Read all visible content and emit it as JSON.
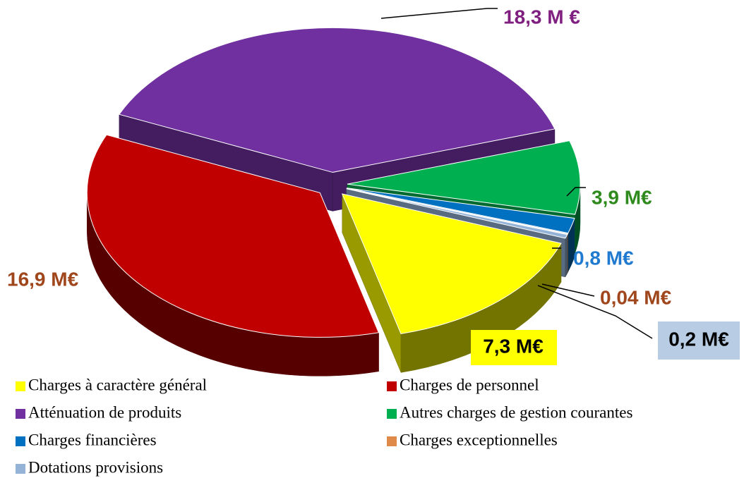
{
  "chart_data": {
    "type": "pie3d",
    "categories": [
      "Charges à caractère général",
      "Charges de personnel",
      "Atténuation de produits",
      "Autres charges de gestion courantes",
      "Charges financières",
      "Charges exceptionnelles",
      "Dotations provisions"
    ],
    "values": [
      7.3,
      16.9,
      18.3,
      3.9,
      0.8,
      0.04,
      0.2
    ],
    "value_labels": [
      "7,3 M€",
      "16,9 M€",
      "18,3 M €",
      "3,9 M€",
      "0,8 M€",
      "0,04 M€",
      "0,2 M€"
    ],
    "colors": [
      "#ffff00",
      "#c00000",
      "#7030a0",
      "#00b050",
      "#0070c0",
      "#e08a4a",
      "#95b3d7"
    ]
  }
}
